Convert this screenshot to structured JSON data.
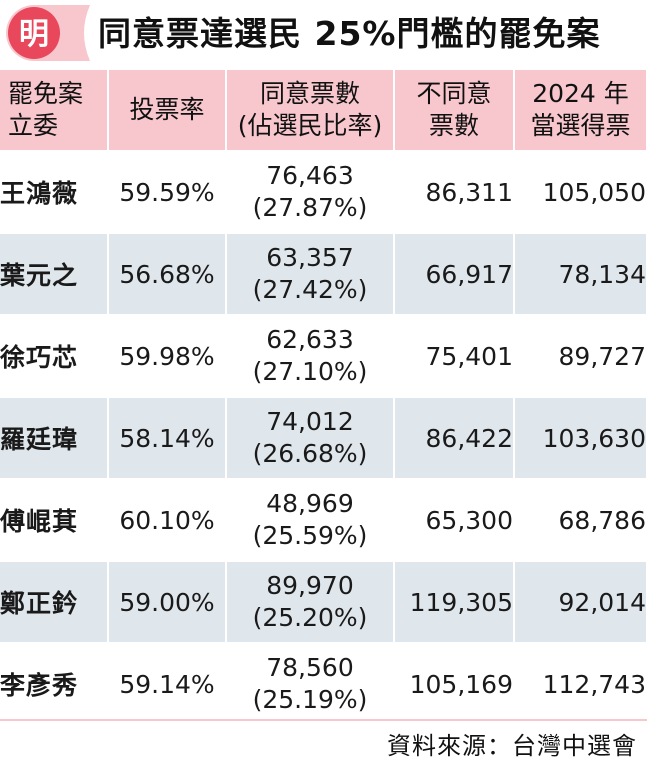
{
  "header": {
    "logo_char": "明",
    "title": "同意票達選民 25%門檻的罷免案"
  },
  "table": {
    "columns": [
      "罷免案\n立委",
      "投票率",
      "同意票數\n(佔選民比率)",
      "不同意\n票數",
      "2024 年\n當選得票"
    ],
    "rows": [
      {
        "name": "王鴻薇",
        "turnout": "59.59%",
        "agree": "76,463",
        "agree_pct": "(27.87%)",
        "disagree": "86,311",
        "votes_2024": "105,050"
      },
      {
        "name": "葉元之",
        "turnout": "56.68%",
        "agree": "63,357",
        "agree_pct": "(27.42%)",
        "disagree": "66,917",
        "votes_2024": "78,134"
      },
      {
        "name": "徐巧芯",
        "turnout": "59.98%",
        "agree": "62,633",
        "agree_pct": "(27.10%)",
        "disagree": "75,401",
        "votes_2024": "89,727"
      },
      {
        "name": "羅廷瑋",
        "turnout": "58.14%",
        "agree": "74,012",
        "agree_pct": "(26.68%)",
        "disagree": "86,422",
        "votes_2024": "103,630"
      },
      {
        "name": "傅崐萁",
        "turnout": "60.10%",
        "agree": "48,969",
        "agree_pct": "(25.59%)",
        "disagree": "65,300",
        "votes_2024": "68,786"
      },
      {
        "name": "鄭正鈐",
        "turnout": "59.00%",
        "agree": "89,970",
        "agree_pct": "(25.20%)",
        "disagree": "119,305",
        "votes_2024": "92,014"
      },
      {
        "name": "李彥秀",
        "turnout": "59.14%",
        "agree": "78,560",
        "agree_pct": "(25.19%)",
        "disagree": "105,169",
        "votes_2024": "112,743"
      }
    ]
  },
  "source": "資料來源：台灣中選會",
  "colors": {
    "header_bg": "#f7c7cd",
    "stripe_bg": "#dfe6ec",
    "logo_red": "#e8475c"
  }
}
